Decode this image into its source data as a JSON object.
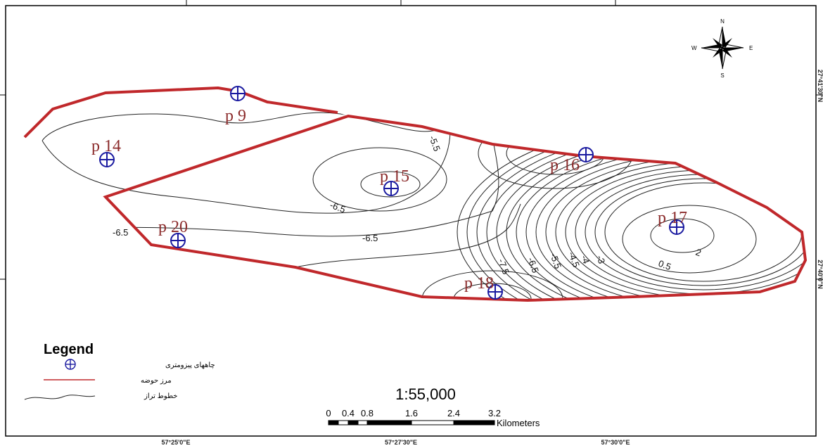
{
  "map": {
    "wells": [
      {
        "label": "p 9"
      },
      {
        "label": "p 14"
      },
      {
        "label": "p 15"
      },
      {
        "label": "p 16"
      },
      {
        "label": "p 17"
      },
      {
        "label": "p 20"
      },
      {
        "label": "p 18"
      }
    ],
    "contour_labels": [
      "-5.5",
      "-6.5",
      "-6.5",
      "-6.5",
      "-7.5",
      "-6.5",
      "-5.5",
      "-4.5",
      "-4",
      "-3",
      "0.5",
      "2"
    ],
    "compass": {
      "north": "N",
      "south": "S",
      "east": "E",
      "west": "W"
    },
    "legend": {
      "title": "Legend",
      "items": [
        "چاههای پیزومتری",
        "مرز حوضه",
        "خطوط تراز"
      ]
    },
    "scale": {
      "ratio": "1:55,000",
      "ticks": [
        "0",
        "0.4",
        "0.8",
        "1.6",
        "2.4",
        "3.2"
      ],
      "unit": "Kilometers"
    },
    "coordinates": {
      "longitude": [
        "57°25'0\"E",
        "57°27'30\"E",
        "57°30'0\"E"
      ],
      "latitude": [
        "27°41'30\"N",
        "27°40'0\"N"
      ]
    }
  }
}
